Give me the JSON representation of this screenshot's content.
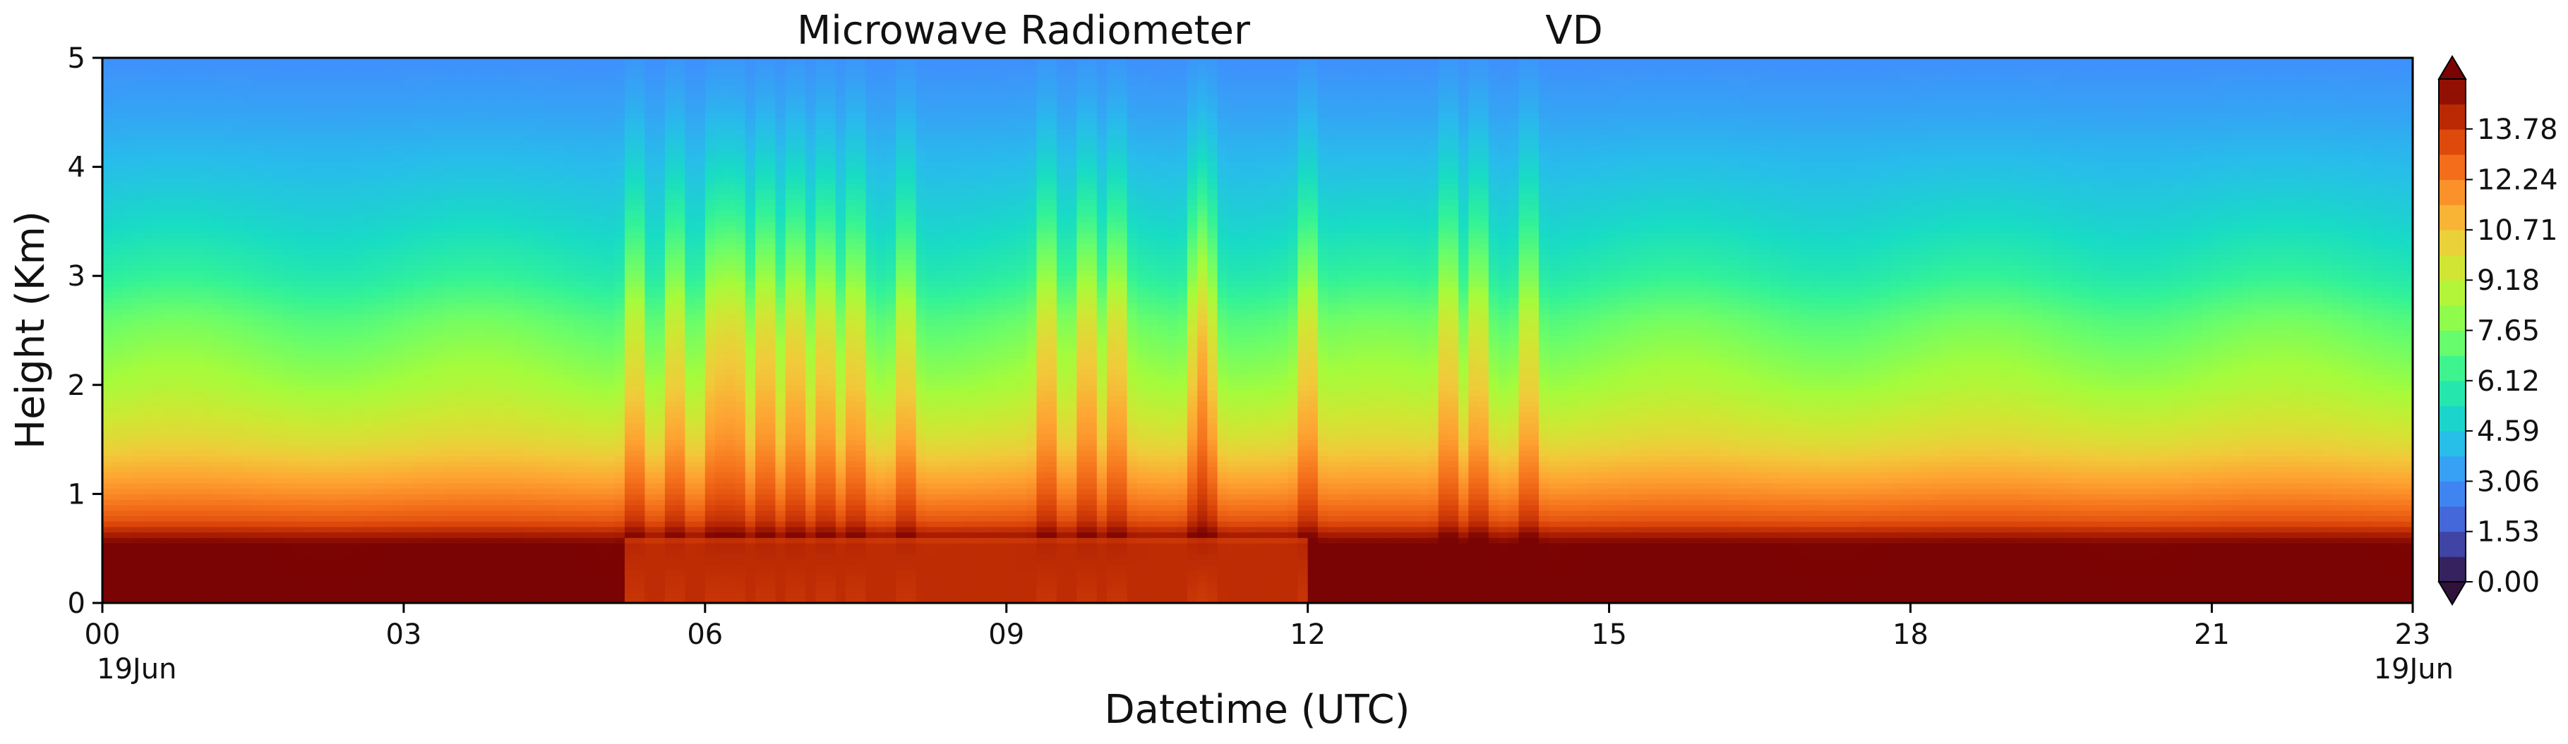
{
  "chart_data": {
    "type": "heatmap",
    "title": "Microwave Radiometer",
    "title_suffix": "VD",
    "xlabel": "Datetime (UTC)",
    "ylabel": "Height (Km)",
    "ylim": [
      0,
      5
    ],
    "xlim": [
      0,
      23
    ],
    "x_ticks": [
      0,
      3,
      6,
      9,
      12,
      15,
      18,
      21,
      23
    ],
    "x_tick_labels": [
      "00",
      "03",
      "06",
      "09",
      "12",
      "15",
      "18",
      "21",
      "23"
    ],
    "x_date_left": "19Jun",
    "x_date_right": "19Jun",
    "y_ticks": [
      0,
      1,
      2,
      3,
      4,
      5
    ],
    "y_tick_labels": [
      "0",
      "1",
      "2",
      "3",
      "4",
      "5"
    ],
    "colorbar": {
      "ticks": [
        0.0,
        1.53,
        3.06,
        4.59,
        6.12,
        7.65,
        9.18,
        10.71,
        12.24,
        13.78
      ],
      "tick_labels": [
        "0.00",
        "1.53",
        "3.06",
        "4.59",
        "6.12",
        "7.65",
        "9.18",
        "10.71",
        "12.24",
        "13.78"
      ],
      "range": [
        0,
        15.3
      ],
      "extend": "both",
      "colormap": "turbo"
    },
    "field_description_points": {
      "surface_layer_value": 15.3,
      "value_at_1km": 12.0,
      "value_at_2km": 8.5,
      "value_at_3km": 6.0,
      "value_at_4km": 4.2,
      "value_at_5km": 3.0
    },
    "convective_bursts_hours": [
      5.3,
      5.7,
      6.1,
      6.3,
      6.6,
      6.9,
      7.2,
      7.5,
      8.0,
      9.4,
      9.8,
      10.1,
      10.9,
      11.0,
      12.0,
      13.4,
      13.7,
      14.2
    ]
  }
}
